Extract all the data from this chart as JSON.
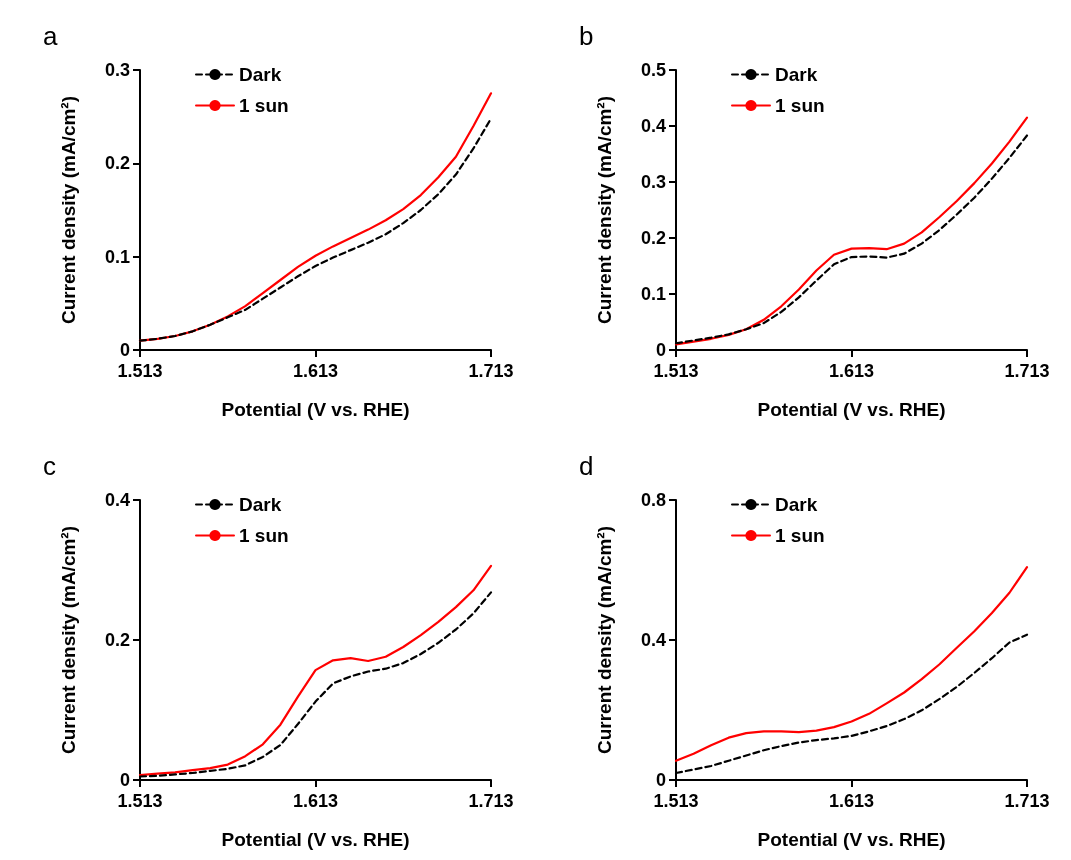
{
  "chart_data": [
    {
      "type": "line",
      "title": "a",
      "xlabel": "Potential (V vs. RHE)",
      "ylabel": "Current density (mA/cm²)",
      "x": [
        1.513,
        1.523,
        1.533,
        1.543,
        1.553,
        1.563,
        1.573,
        1.583,
        1.593,
        1.603,
        1.613,
        1.623,
        1.633,
        1.643,
        1.653,
        1.663,
        1.673,
        1.683,
        1.693,
        1.703,
        1.713
      ],
      "xlim": [
        1.513,
        1.713
      ],
      "xticks": [
        1.513,
        1.613,
        1.713
      ],
      "ylim": [
        0,
        0.3
      ],
      "yticks": [
        0,
        0.1,
        0.2,
        0.3
      ],
      "grid": false,
      "legend": "top left",
      "marker": "none",
      "series": [
        {
          "name": "Dark",
          "color": "#000000",
          "line_style": "dashed",
          "values": [
            0.01,
            0.012,
            0.015,
            0.02,
            0.027,
            0.035,
            0.043,
            0.055,
            0.067,
            0.079,
            0.09,
            0.099,
            0.107,
            0.115,
            0.124,
            0.136,
            0.15,
            0.167,
            0.188,
            0.216,
            0.248
          ]
        },
        {
          "name": "1 sun",
          "color": "#ff0000",
          "line_style": "solid",
          "values": [
            0.01,
            0.012,
            0.015,
            0.02,
            0.027,
            0.036,
            0.047,
            0.061,
            0.075,
            0.089,
            0.101,
            0.111,
            0.12,
            0.129,
            0.139,
            0.151,
            0.166,
            0.185,
            0.207,
            0.24,
            0.275
          ]
        }
      ]
    },
    {
      "type": "line",
      "title": "b",
      "xlabel": "Potential (V vs. RHE)",
      "ylabel": "Current density (mA/cm²)",
      "x": [
        1.513,
        1.523,
        1.533,
        1.543,
        1.553,
        1.563,
        1.573,
        1.583,
        1.593,
        1.603,
        1.613,
        1.623,
        1.633,
        1.643,
        1.653,
        1.663,
        1.673,
        1.683,
        1.693,
        1.703,
        1.713
      ],
      "xlim": [
        1.513,
        1.713
      ],
      "xticks": [
        1.513,
        1.613,
        1.713
      ],
      "ylim": [
        0,
        0.5
      ],
      "yticks": [
        0,
        0.1,
        0.2,
        0.3,
        0.4,
        0.5
      ],
      "grid": false,
      "legend": "top left",
      "marker": "none",
      "series": [
        {
          "name": "Dark",
          "color": "#000000",
          "line_style": "dashed",
          "values": [
            0.012,
            0.017,
            0.022,
            0.028,
            0.037,
            0.048,
            0.068,
            0.094,
            0.124,
            0.153,
            0.166,
            0.167,
            0.165,
            0.172,
            0.19,
            0.214,
            0.242,
            0.272,
            0.306,
            0.343,
            0.383
          ]
        },
        {
          "name": "1 sun",
          "color": "#ff0000",
          "line_style": "solid",
          "values": [
            0.01,
            0.015,
            0.02,
            0.027,
            0.037,
            0.054,
            0.078,
            0.108,
            0.142,
            0.17,
            0.181,
            0.182,
            0.18,
            0.19,
            0.21,
            0.237,
            0.266,
            0.298,
            0.333,
            0.372,
            0.415
          ]
        }
      ]
    },
    {
      "type": "line",
      "title": "c",
      "xlabel": "Potential (V vs. RHE)",
      "ylabel": "Current density (mA/cm²)",
      "x": [
        1.513,
        1.523,
        1.533,
        1.543,
        1.553,
        1.563,
        1.573,
        1.583,
        1.593,
        1.603,
        1.613,
        1.623,
        1.633,
        1.643,
        1.653,
        1.663,
        1.673,
        1.683,
        1.693,
        1.703,
        1.713
      ],
      "xlim": [
        1.513,
        1.713
      ],
      "xticks": [
        1.513,
        1.613,
        1.713
      ],
      "ylim": [
        0,
        0.4
      ],
      "yticks": [
        0,
        0.2,
        0.4
      ],
      "grid": false,
      "legend": "top left",
      "marker": "none",
      "series": [
        {
          "name": "Dark",
          "color": "#000000",
          "line_style": "dashed",
          "values": [
            0.005,
            0.006,
            0.008,
            0.01,
            0.013,
            0.016,
            0.021,
            0.033,
            0.05,
            0.08,
            0.112,
            0.138,
            0.148,
            0.155,
            0.159,
            0.167,
            0.18,
            0.196,
            0.215,
            0.238,
            0.268
          ]
        },
        {
          "name": "1 sun",
          "color": "#ff0000",
          "line_style": "solid",
          "values": [
            0.007,
            0.009,
            0.011,
            0.014,
            0.017,
            0.022,
            0.034,
            0.051,
            0.079,
            0.119,
            0.157,
            0.171,
            0.174,
            0.17,
            0.176,
            0.19,
            0.207,
            0.226,
            0.247,
            0.271,
            0.306
          ]
        }
      ]
    },
    {
      "type": "line",
      "title": "d",
      "xlabel": "Potential (V vs. RHE)",
      "ylabel": "Current density (mA/cm²)",
      "x": [
        1.513,
        1.523,
        1.533,
        1.543,
        1.553,
        1.563,
        1.573,
        1.583,
        1.593,
        1.603,
        1.613,
        1.623,
        1.633,
        1.643,
        1.653,
        1.663,
        1.673,
        1.683,
        1.693,
        1.703,
        1.713
      ],
      "xlim": [
        1.513,
        1.713
      ],
      "xticks": [
        1.513,
        1.613,
        1.713
      ],
      "ylim": [
        0,
        0.8
      ],
      "yticks": [
        0,
        0.4,
        0.8
      ],
      "grid": false,
      "legend": "top left",
      "marker": "none",
      "series": [
        {
          "name": "Dark",
          "color": "#000000",
          "line_style": "dashed",
          "values": [
            0.02,
            0.03,
            0.04,
            0.055,
            0.07,
            0.085,
            0.097,
            0.107,
            0.114,
            0.119,
            0.126,
            0.139,
            0.154,
            0.174,
            0.199,
            0.231,
            0.266,
            0.306,
            0.348,
            0.393,
            0.415
          ]
        },
        {
          "name": "1 sun",
          "color": "#ff0000",
          "line_style": "solid",
          "values": [
            0.055,
            0.075,
            0.099,
            0.121,
            0.134,
            0.139,
            0.139,
            0.137,
            0.141,
            0.151,
            0.167,
            0.189,
            0.219,
            0.25,
            0.288,
            0.33,
            0.378,
            0.425,
            0.477,
            0.535,
            0.608
          ]
        }
      ]
    }
  ]
}
